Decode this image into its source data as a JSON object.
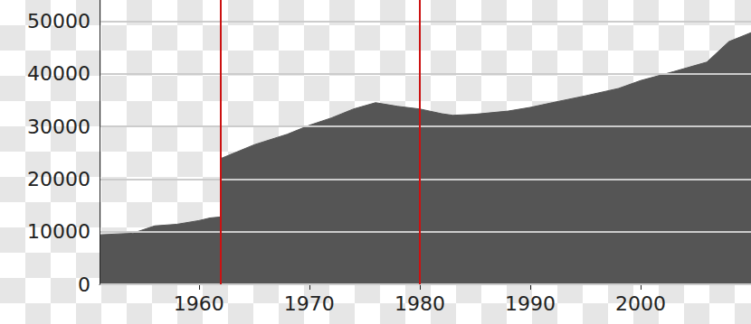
{
  "chart_data": {
    "type": "area",
    "x": [
      1951,
      1954,
      1956,
      1958,
      1960,
      1961,
      1962,
      1962,
      1965,
      1968,
      1970,
      1972,
      1974,
      1976,
      1978,
      1980,
      1982,
      1983,
      1985,
      1988,
      1990,
      1992,
      1995,
      1998,
      2000,
      2003,
      2006,
      2008,
      2010
    ],
    "values": [
      9400,
      9700,
      11100,
      11400,
      12100,
      12600,
      12800,
      23900,
      26500,
      28500,
      30200,
      31600,
      33300,
      34500,
      33800,
      33300,
      32400,
      32100,
      32300,
      32900,
      33600,
      34500,
      35800,
      37200,
      38700,
      40400,
      42200,
      46100,
      47800
    ],
    "color": "#555555",
    "reference_lines": [
      1962,
      1980
    ],
    "xlim": [
      1951,
      2010
    ],
    "xticks": [
      1960,
      1970,
      1980,
      1990,
      2000
    ],
    "ylim": [
      0,
      54000
    ],
    "yticks": [
      0,
      10000,
      20000,
      30000,
      40000,
      50000
    ],
    "grid": true
  }
}
